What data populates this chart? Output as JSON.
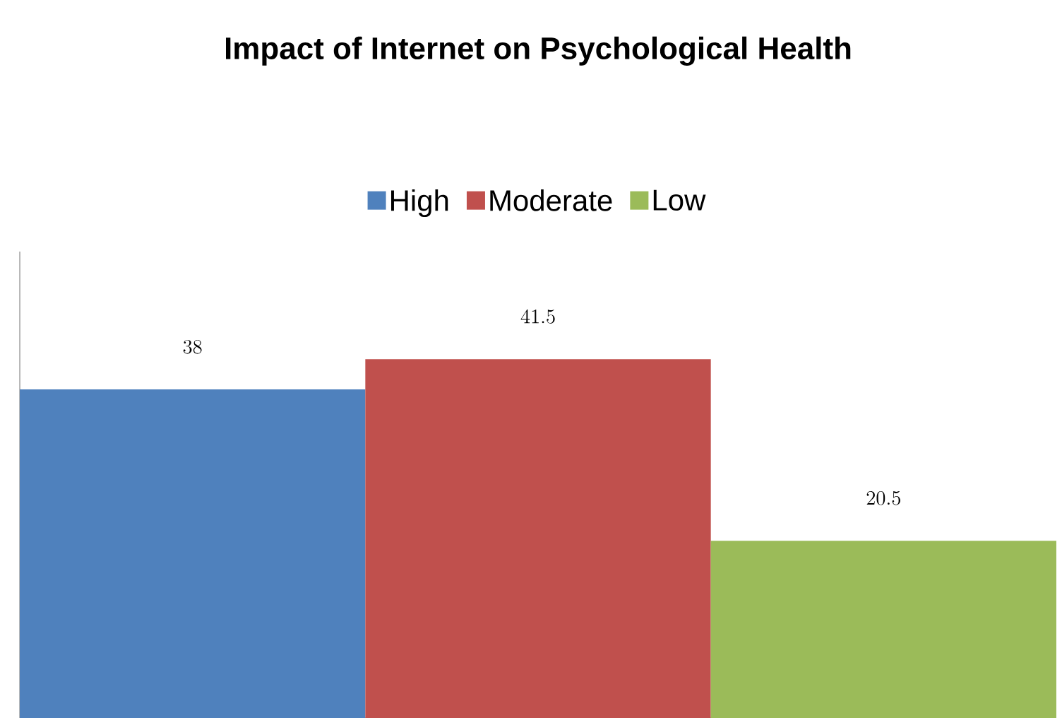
{
  "chart_data": {
    "type": "bar",
    "title": "Impact of Internet on Psychological Health",
    "categories": [
      null
    ],
    "series": [
      {
        "name": "High",
        "color": "#4f81bd",
        "values": [
          38
        ]
      },
      {
        "name": "Moderate",
        "color": "#c0504d",
        "values": [
          41.5
        ]
      },
      {
        "name": "Low",
        "color": "#9bbb59",
        "values": [
          20.5
        ]
      }
    ],
    "data_labels": true,
    "legend": "top"
  }
}
